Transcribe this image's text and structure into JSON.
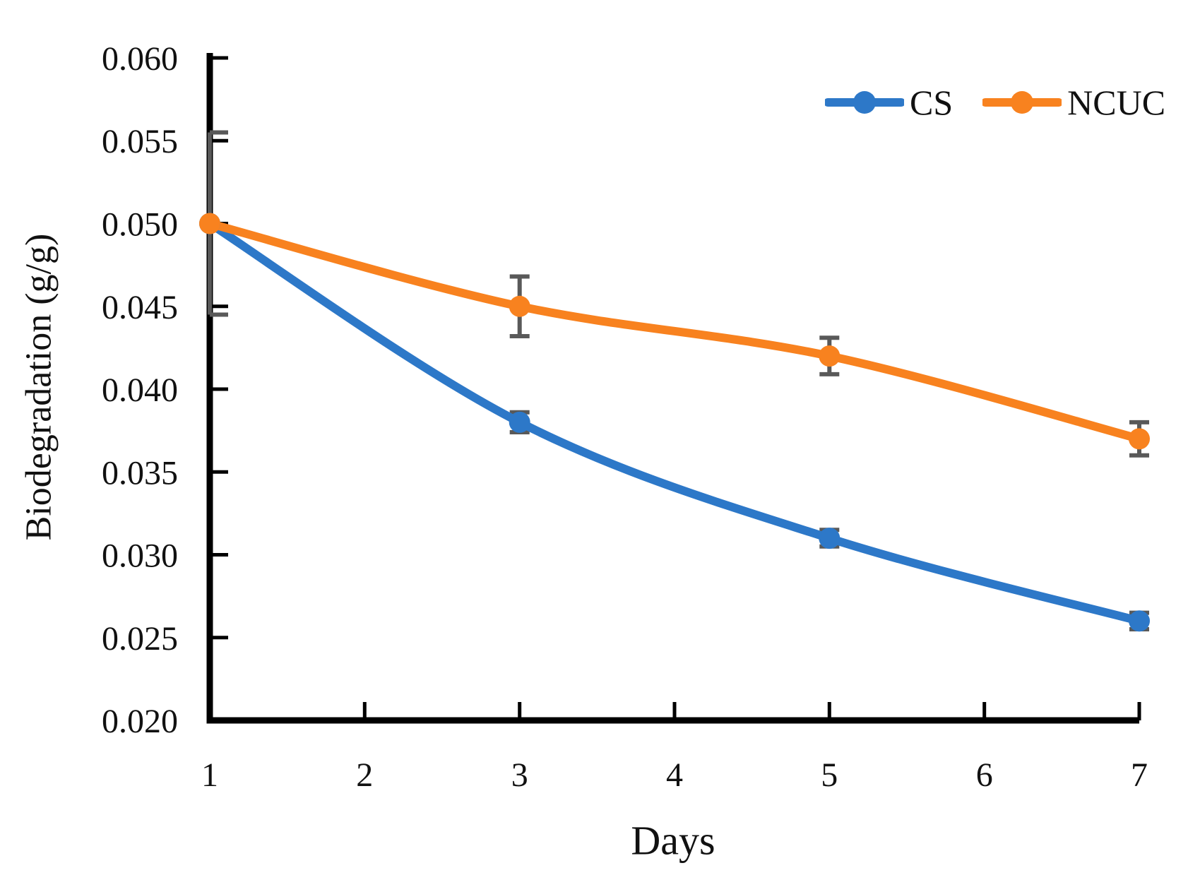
{
  "figure": {
    "background_color": "#ffffff",
    "text_color": "#111111"
  },
  "chart_data": {
    "type": "line",
    "title": "",
    "xlabel": "Days",
    "ylabel": "Biodegradation (g/g)",
    "x": [
      1,
      3,
      5,
      7
    ],
    "series": [
      {
        "name": "CS",
        "color": "#2d78c8",
        "values": [
          0.05,
          0.038,
          0.031,
          0.026
        ],
        "errors": [
          0,
          0.0006,
          0.0005,
          0.0005
        ]
      },
      {
        "name": "NCUC",
        "color": "#f8821f",
        "values": [
          0.05,
          0.045,
          0.042,
          0.037
        ],
        "errors": [
          0.0055,
          0.0018,
          0.0011,
          0.001
        ]
      }
    ],
    "xlim": [
      1,
      7
    ],
    "ylim": [
      0.02,
      0.06
    ],
    "x_ticks": [
      1,
      2,
      3,
      4,
      5,
      6,
      7
    ],
    "x_tick_labels": [
      "1",
      "2",
      "3",
      "4",
      "5",
      "6",
      "7"
    ],
    "y_ticks": [
      0.06,
      0.055,
      0.05,
      0.045,
      0.04,
      0.035,
      0.03,
      0.025,
      0.02
    ],
    "y_tick_labels": [
      "0.060",
      "0.055",
      "0.050",
      "0.045",
      "0.040",
      "0.035",
      "0.030",
      "0.025",
      "0.020"
    ],
    "grid": false,
    "smooth_lines": true,
    "marker": "circle",
    "legend_position": "top-right",
    "axis_color": "#000000",
    "error_bar_color": "#595959"
  }
}
